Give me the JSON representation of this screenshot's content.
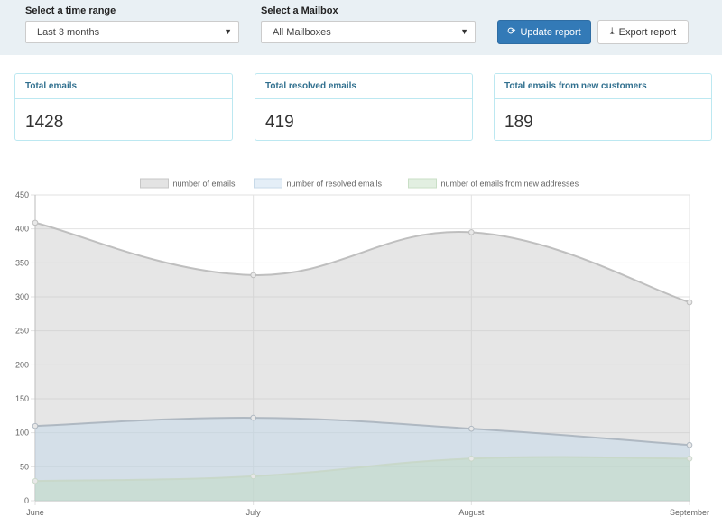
{
  "filters": {
    "time_range": {
      "label": "Select a time range",
      "selected": "Last 3 months"
    },
    "mailbox": {
      "label": "Select a Mailbox",
      "selected": "All Mailboxes"
    }
  },
  "actions": {
    "update": {
      "label": "Update report",
      "icon": "refresh-icon"
    },
    "export": {
      "label": "Export report",
      "icon": "download-icon"
    }
  },
  "stats": [
    {
      "title": "Total emails",
      "value": "1428"
    },
    {
      "title": "Total resolved emails",
      "value": "419"
    },
    {
      "title": "Total emails from new customers",
      "value": "189"
    }
  ],
  "colors": {
    "primary": "#337ab7",
    "card_border": "#bce8f1",
    "card_title": "#31708f"
  },
  "chart_data": {
    "type": "area",
    "categories": [
      "June",
      "July",
      "August",
      "September"
    ],
    "series": [
      {
        "name": "number of emails",
        "values": [
          409,
          332,
          395,
          292
        ],
        "fill": "rgba(200,200,200,0.45)",
        "stroke": "rgba(185,185,185,0.9)",
        "legend_fill": "#e3e3e3",
        "legend_stroke": "#c7c7c7"
      },
      {
        "name": "number of resolved emails",
        "values": [
          110,
          122,
          106,
          82
        ],
        "fill": "rgba(190,215,235,0.45)",
        "stroke": "rgba(170,180,190,0.9)",
        "legend_fill": "#e4eef7",
        "legend_stroke": "#c7d9e8"
      },
      {
        "name": "number of emails from new addresses",
        "values": [
          29,
          36,
          62,
          62
        ],
        "fill": "rgba(190,220,190,0.45)",
        "stroke": "rgba(200,215,200,0.9)",
        "legend_fill": "#e2efe1",
        "legend_stroke": "#c9dfc6"
      }
    ],
    "ylim": [
      0,
      450
    ],
    "yticks": [
      "0",
      "50",
      "100",
      "150",
      "200",
      "250",
      "300",
      "350",
      "400",
      "450"
    ],
    "grid": true,
    "legend": "top-center"
  }
}
